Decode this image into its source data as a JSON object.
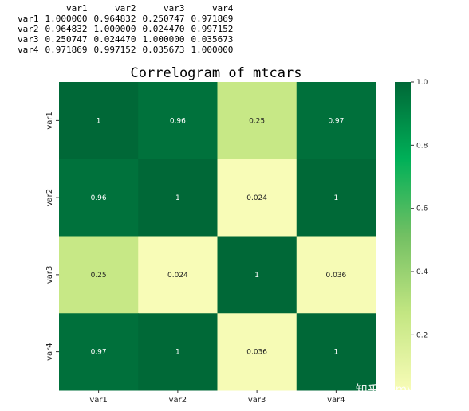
{
  "printout": {
    "columns": [
      "var1",
      "var2",
      "var3",
      "var4"
    ],
    "rows": [
      {
        "label": "var1",
        "values": [
          "1.000000",
          "0.964832",
          "0.250747",
          "0.971869"
        ]
      },
      {
        "label": "var2",
        "values": [
          "0.964832",
          "1.000000",
          "0.024470",
          "0.997152"
        ]
      },
      {
        "label": "var3",
        "values": [
          "0.250747",
          "0.024470",
          "1.000000",
          "0.035673"
        ]
      },
      {
        "label": "var4",
        "values": [
          "0.971869",
          "0.997152",
          "0.035673",
          "1.000000"
        ]
      }
    ]
  },
  "chart_data": {
    "type": "heatmap",
    "title": "Correlogram of mtcars",
    "xlabel": "",
    "ylabel": "",
    "x_categories": [
      "var1",
      "var2",
      "var3",
      "var4"
    ],
    "y_categories": [
      "var1",
      "var2",
      "var3",
      "var4"
    ],
    "values": [
      [
        1.0,
        0.964832,
        0.250747,
        0.971869
      ],
      [
        0.964832,
        1.0,
        0.02447,
        0.997152
      ],
      [
        0.250747,
        0.02447,
        1.0,
        0.035673
      ],
      [
        0.971869,
        0.997152,
        0.035673,
        1.0
      ]
    ],
    "annotations": [
      [
        "1",
        "0.96",
        "0.25",
        "0.97"
      ],
      [
        "0.96",
        "1",
        "0.024",
        "1"
      ],
      [
        "0.25",
        "0.024",
        "1",
        "0.036"
      ],
      [
        "0.97",
        "1",
        "0.036",
        "1"
      ]
    ],
    "colormap": "YlGn",
    "vmin": 0.02447,
    "vmax": 1.0,
    "colorbar_ticks": [
      0.2,
      0.4,
      0.6,
      0.8,
      1.0
    ],
    "colorbar_tick_labels": [
      "0.2",
      "0.4",
      "0.6",
      "0.8",
      "1.0"
    ],
    "colorbar_colors": [
      "#f8fcb7",
      "#c3e682",
      "#73c063",
      "#00b058",
      "#006837"
    ],
    "grid": false,
    "legend": "colorbar-right"
  },
  "watermark": "知乎 @my breath"
}
